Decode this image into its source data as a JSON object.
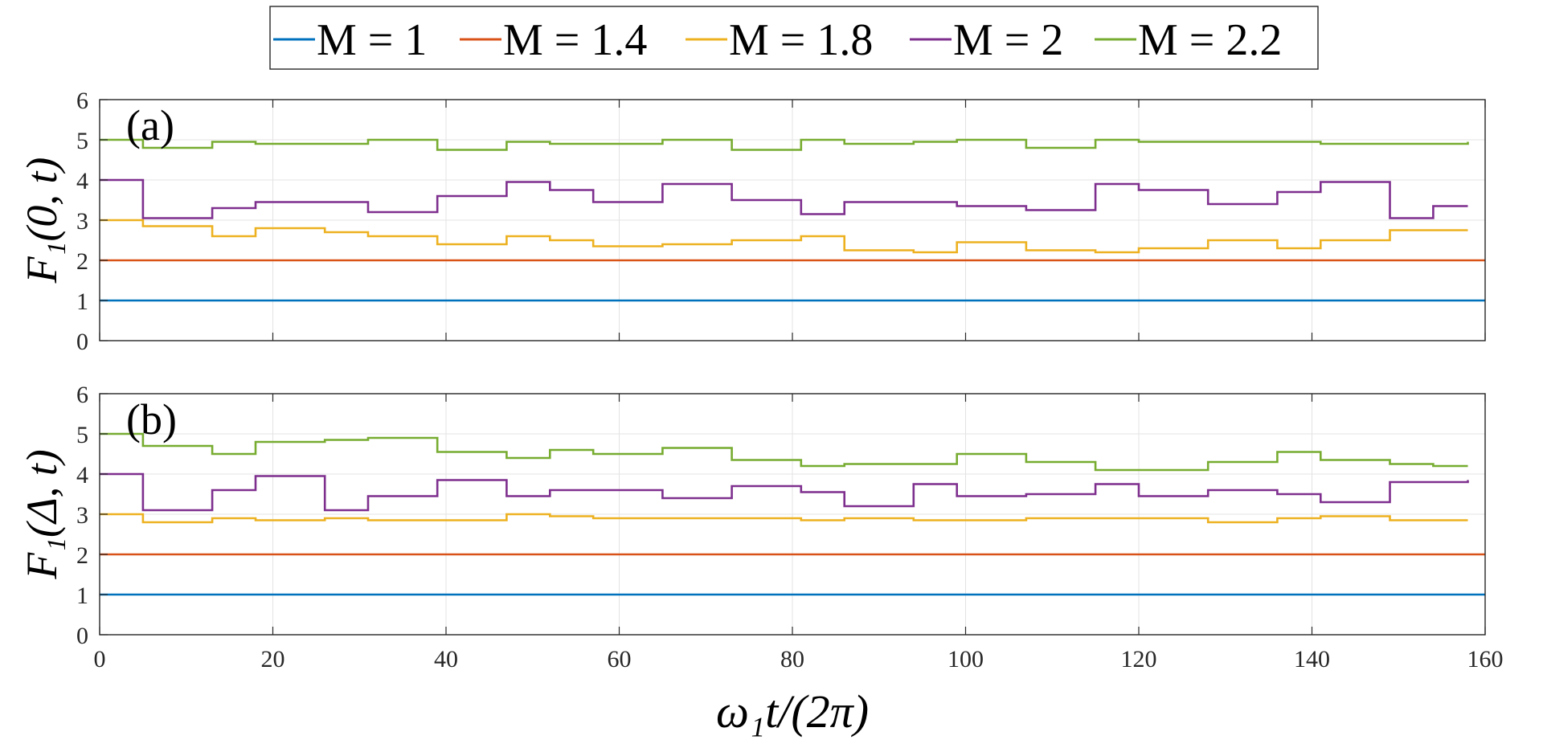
{
  "chart_data": {
    "type": "line",
    "legend": {
      "placement": "top-center",
      "entries": [
        "M = 1",
        "M = 1.4",
        "M = 1.8",
        "M = 2",
        "M = 2.2"
      ]
    },
    "xlabel": "ω₁t/(2π)",
    "xlim": [
      0,
      160
    ],
    "xticks": [
      0,
      20,
      40,
      60,
      80,
      100,
      120,
      140,
      160
    ],
    "grid": true,
    "panels": [
      {
        "panel_label": "(a)",
        "ylabel": "F₁(0, t)",
        "ylim": [
          0,
          6
        ],
        "yticks": [
          0,
          1,
          2,
          3,
          4,
          5,
          6
        ],
        "series": [
          {
            "name": "M = 1",
            "color": "#0072BD",
            "x": [
              0,
              160
            ],
            "y": [
              1,
              1
            ]
          },
          {
            "name": "M = 1.4",
            "color": "#D95319",
            "x": [
              0,
              160
            ],
            "y": [
              2,
              2
            ]
          },
          {
            "name": "M = 1.8",
            "color": "#EDB120",
            "x": [
              0,
              5,
              13,
              18,
              26,
              31,
              39,
              47,
              52,
              57,
              65,
              73,
              81,
              86,
              94,
              99,
              107,
              115,
              120,
              128,
              136,
              141,
              149,
              154,
              158
            ],
            "y": [
              3,
              2.85,
              2.6,
              2.8,
              2.7,
              2.6,
              2.4,
              2.6,
              2.5,
              2.35,
              2.4,
              2.5,
              2.6,
              2.25,
              2.2,
              2.45,
              2.25,
              2.2,
              2.3,
              2.5,
              2.3,
              2.5,
              2.75,
              2.75,
              2.75
            ]
          },
          {
            "name": "M = 2",
            "color": "#7E2F8E",
            "x": [
              0,
              5,
              13,
              18,
              26,
              31,
              39,
              47,
              52,
              57,
              65,
              73,
              81,
              86,
              94,
              99,
              107,
              115,
              120,
              128,
              136,
              141,
              149,
              154,
              158
            ],
            "y": [
              4,
              3.05,
              3.3,
              3.45,
              3.45,
              3.2,
              3.6,
              3.95,
              3.75,
              3.45,
              3.9,
              3.5,
              3.15,
              3.45,
              3.45,
              3.35,
              3.25,
              3.9,
              3.75,
              3.4,
              3.7,
              3.95,
              3.05,
              3.35,
              3.35
            ]
          },
          {
            "name": "M = 2.2",
            "color": "#77AC30",
            "x": [
              0,
              5,
              13,
              18,
              26,
              31,
              39,
              47,
              52,
              57,
              65,
              73,
              81,
              86,
              94,
              99,
              107,
              115,
              120,
              128,
              136,
              141,
              149,
              154,
              158
            ],
            "y": [
              5,
              4.8,
              4.95,
              4.9,
              4.9,
              5.0,
              4.75,
              4.95,
              4.9,
              4.9,
              5.0,
              4.75,
              5.0,
              4.9,
              4.95,
              5.0,
              4.8,
              5.0,
              4.95,
              4.95,
              4.95,
              4.9,
              4.9,
              4.9,
              4.95
            ]
          }
        ]
      },
      {
        "panel_label": "(b)",
        "ylabel": "F₁(Δ, t)",
        "ylim": [
          0,
          6
        ],
        "yticks": [
          0,
          1,
          2,
          3,
          4,
          5,
          6
        ],
        "series": [
          {
            "name": "M = 1",
            "color": "#0072BD",
            "x": [
              0,
              160
            ],
            "y": [
              1,
              1
            ]
          },
          {
            "name": "M = 1.4",
            "color": "#D95319",
            "x": [
              0,
              160
            ],
            "y": [
              2,
              2
            ]
          },
          {
            "name": "M = 1.8",
            "color": "#EDB120",
            "x": [
              0,
              5,
              13,
              18,
              26,
              31,
              39,
              47,
              52,
              57,
              65,
              73,
              81,
              86,
              94,
              99,
              107,
              115,
              120,
              128,
              136,
              141,
              149,
              154,
              158
            ],
            "y": [
              3,
              2.8,
              2.9,
              2.85,
              2.9,
              2.85,
              2.85,
              3.0,
              2.95,
              2.9,
              2.9,
              2.9,
              2.85,
              2.9,
              2.85,
              2.85,
              2.9,
              2.9,
              2.9,
              2.8,
              2.9,
              2.95,
              2.85,
              2.85,
              2.85
            ]
          },
          {
            "name": "M = 2",
            "color": "#7E2F8E",
            "x": [
              0,
              5,
              13,
              18,
              26,
              31,
              39,
              47,
              52,
              57,
              65,
              73,
              81,
              86,
              94,
              99,
              107,
              115,
              120,
              128,
              136,
              141,
              149,
              154,
              158
            ],
            "y": [
              4,
              3.1,
              3.6,
              3.95,
              3.1,
              3.45,
              3.85,
              3.45,
              3.6,
              3.6,
              3.4,
              3.7,
              3.55,
              3.2,
              3.75,
              3.45,
              3.5,
              3.75,
              3.45,
              3.6,
              3.5,
              3.3,
              3.8,
              3.8,
              3.85
            ]
          },
          {
            "name": "M = 2.2",
            "color": "#77AC30",
            "x": [
              0,
              5,
              13,
              18,
              26,
              31,
              39,
              47,
              52,
              57,
              65,
              73,
              81,
              86,
              94,
              99,
              107,
              115,
              120,
              128,
              136,
              141,
              149,
              154,
              158
            ],
            "y": [
              5,
              4.7,
              4.5,
              4.8,
              4.85,
              4.9,
              4.55,
              4.4,
              4.6,
              4.5,
              4.65,
              4.35,
              4.2,
              4.25,
              4.25,
              4.5,
              4.3,
              4.1,
              4.1,
              4.3,
              4.55,
              4.35,
              4.25,
              4.2,
              4.2
            ]
          }
        ]
      }
    ]
  }
}
